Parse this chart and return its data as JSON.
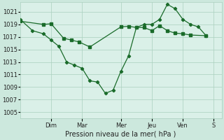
{
  "xlabel": "Pression niveau de la mer( hPa )",
  "bg_color": "#cce8dd",
  "plot_bg_color": "#daf0e8",
  "grid_color": "#aacfbe",
  "line_color": "#1a6b2a",
  "ylim": [
    1004.0,
    1022.5
  ],
  "yticks": [
    1005,
    1007,
    1009,
    1011,
    1013,
    1015,
    1017,
    1019,
    1021
  ],
  "xlim": [
    0,
    13.0
  ],
  "day_labels": [
    "Dim",
    "Mar",
    "Mer",
    "Jeu",
    "Ven",
    "S"
  ],
  "day_positions": [
    2.0,
    4.0,
    6.5,
    8.5,
    10.5,
    12.5
  ],
  "line1_x": [
    0.0,
    1.5,
    2.0,
    2.8,
    3.3,
    3.8,
    4.5,
    6.5,
    7.0,
    7.5,
    8.0,
    8.5,
    9.0,
    9.5,
    10.0,
    10.5,
    11.0,
    12.0
  ],
  "line1_y": [
    1019.5,
    1019.0,
    1019.1,
    1016.8,
    1016.5,
    1016.2,
    1015.4,
    1018.6,
    1018.7,
    1018.5,
    1018.5,
    1018.0,
    1018.8,
    1018.0,
    1017.6,
    1017.5,
    1017.3,
    1017.2
  ],
  "line2_x": [
    0.0,
    0.8,
    1.5,
    2.0,
    2.5,
    3.0,
    3.5,
    4.0,
    4.5,
    5.0,
    5.5,
    6.0,
    6.5,
    7.0,
    7.5,
    8.0,
    8.5,
    9.0,
    9.5,
    10.0,
    10.5,
    11.0,
    11.5,
    12.0
  ],
  "line2_y": [
    1019.8,
    1018.0,
    1017.5,
    1016.5,
    1015.5,
    1013.0,
    1012.5,
    1012.0,
    1010.0,
    1009.8,
    1008.0,
    1008.5,
    1011.5,
    1014.0,
    1018.5,
    1019.0,
    1019.0,
    1019.8,
    1022.2,
    1021.5,
    1019.8,
    1019.0,
    1018.6,
    1017.2
  ]
}
